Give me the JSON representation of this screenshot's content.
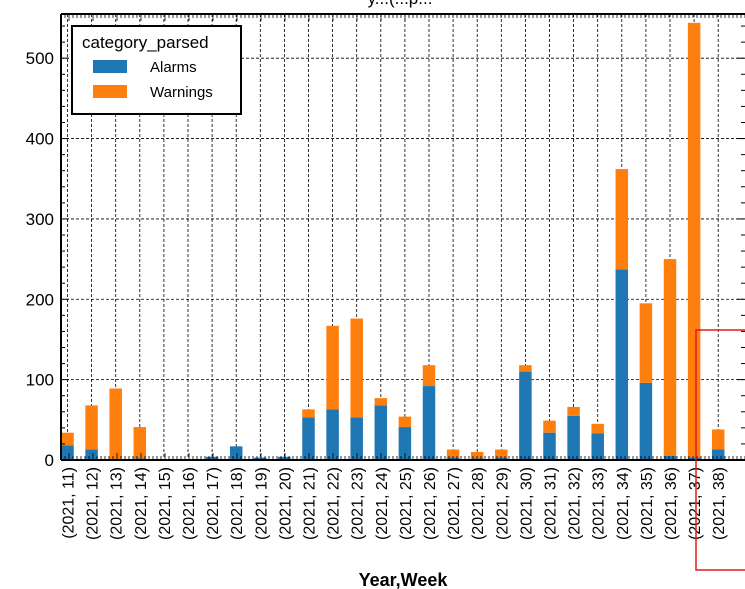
{
  "chart_data": {
    "type": "bar",
    "stacked": true,
    "title": "y...(...p...",
    "xlabel": "Year,Week",
    "ylabel": "",
    "ylim": [
      0,
      555
    ],
    "yticks": [
      0,
      100,
      200,
      300,
      400,
      500
    ],
    "grid": true,
    "legend": {
      "title": "category_parsed",
      "placement": "top-left"
    },
    "categories": [
      "(2021, 11)",
      "(2021, 12)",
      "(2021, 13)",
      "(2021, 14)",
      "(2021, 15)",
      "(2021, 16)",
      "(2021, 17)",
      "(2021, 18)",
      "(2021, 19)",
      "(2021, 20)",
      "(2021, 21)",
      "(2021, 22)",
      "(2021, 23)",
      "(2021, 24)",
      "(2021, 25)",
      "(2021, 26)",
      "(2021, 27)",
      "(2021, 28)",
      "(2021, 29)",
      "(2021, 30)",
      "(2021, 31)",
      "(2021, 32)",
      "(2021, 33)",
      "(2021, 34)",
      "(2021, 35)",
      "(2021, 36)",
      "(2021, 37)",
      "(2021, 38)"
    ],
    "series": [
      {
        "name": "Alarms",
        "color": "#1f77b4",
        "values": [
          18,
          13,
          0,
          2,
          0,
          0,
          4,
          17,
          3,
          4,
          53,
          63,
          53,
          68,
          41,
          92,
          3,
          2,
          3,
          110,
          34,
          55,
          33,
          237,
          96,
          5,
          3,
          13
        ]
      },
      {
        "name": "Warnings",
        "color": "#ff7f0e",
        "values": [
          16,
          55,
          89,
          39,
          0,
          0,
          0,
          0,
          0,
          0,
          10,
          104,
          123,
          9,
          13,
          26,
          10,
          8,
          10,
          8,
          15,
          11,
          12,
          125,
          99,
          245,
          541,
          25
        ]
      }
    ],
    "annotation": {
      "type": "highlight-box",
      "color": "#e31a1c",
      "covers": [
        "(2021, 37)",
        "(2021, 38)"
      ]
    }
  }
}
